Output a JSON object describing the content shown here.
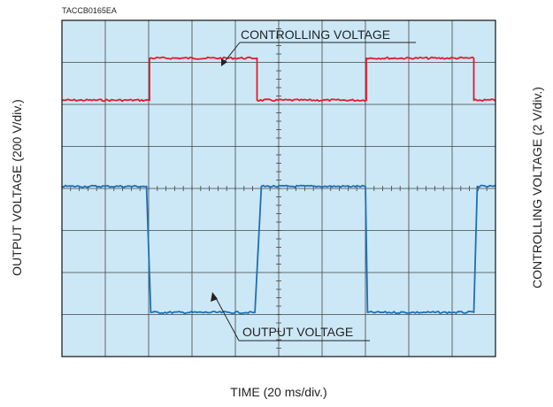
{
  "chart_data": {
    "type": "line",
    "code": "TACCB0165EA",
    "xlabel": "TIME (20 ms/div.)",
    "ylabel_left": "OUTPUT VOLTAGE (200 V/div.)",
    "ylabel_right": "CONTROLLING VOLTAGE (2 V/div.)",
    "grid": true,
    "divisions": {
      "x": 10,
      "y": 8
    },
    "xlim_div": [
      0,
      10
    ],
    "ylim_div": [
      0,
      8
    ],
    "colors": {
      "background": "#cce8f6",
      "grid": "#444444",
      "controlling": "#e8192c",
      "output": "#1f6fb5"
    },
    "series": [
      {
        "name": "CONTROLLING VOLTAGE",
        "color": "#e8192c",
        "x_div": [
          0,
          2.02,
          2.02,
          4.5,
          4.5,
          7.02,
          7.02,
          9.5,
          9.5,
          10
        ],
        "y_div": [
          6.1,
          6.1,
          7.1,
          7.1,
          6.1,
          6.1,
          7.1,
          7.1,
          6.1,
          6.1
        ]
      },
      {
        "name": "OUTPUT VOLTAGE",
        "color": "#1f6fb5",
        "x_div": [
          0,
          1.95,
          2.05,
          4.45,
          4.6,
          7.0,
          7.05,
          9.5,
          9.58,
          10
        ],
        "y_div": [
          4.05,
          4.05,
          1.05,
          1.05,
          4.05,
          4.05,
          1.05,
          1.05,
          4.05,
          4.05
        ]
      }
    ],
    "annotations": [
      {
        "text": "CONTROLLING VOLTAGE",
        "series": "CONTROLLING VOLTAGE"
      },
      {
        "text": "OUTPUT VOLTAGE",
        "series": "OUTPUT VOLTAGE"
      }
    ]
  }
}
